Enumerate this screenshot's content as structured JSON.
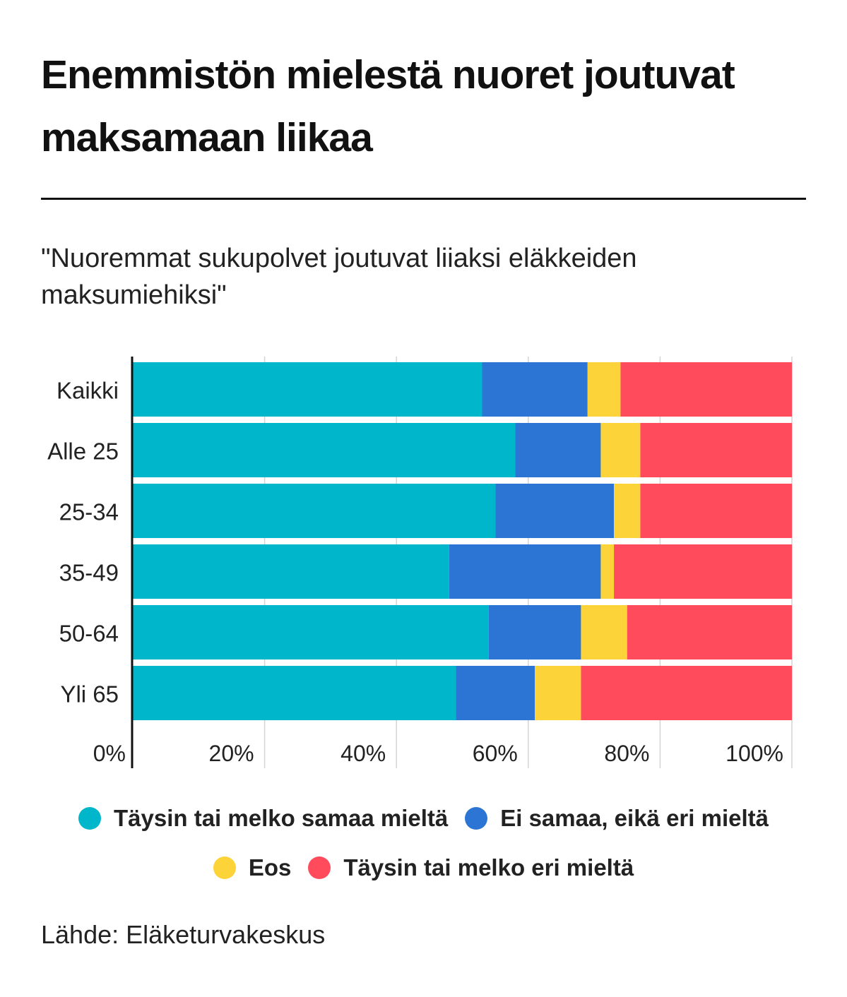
{
  "title": "Enemmistön mielestä nuoret joutuvat maksamaan liikaa",
  "subtitle": "\"Nuoremmat sukupolvet joutuvat liiaksi eläkkeiden maksumiehiksi\"",
  "source": "Lähde: Eläketurvakeskus",
  "chart_data": {
    "type": "bar",
    "orientation": "horizontal",
    "stacked": true,
    "categories": [
      "Kaikki",
      "Alle 25",
      "25-34",
      "35-49",
      "50-64",
      "Yli 65"
    ],
    "series": [
      {
        "name": "Täysin tai melko samaa mieltä",
        "color": "#00b6cb",
        "values": [
          53,
          58,
          55,
          48,
          54,
          49
        ]
      },
      {
        "name": "Ei samaa, eikä eri mieltä",
        "color": "#2d75d4",
        "values": [
          16,
          13,
          18,
          23,
          14,
          12
        ]
      },
      {
        "name": "Eos",
        "color": "#fdd33a",
        "values": [
          5,
          6,
          4,
          2,
          7,
          7
        ]
      },
      {
        "name": "Täysin tai melko eri mieltä",
        "color": "#ff4b5c",
        "values": [
          26,
          23,
          23,
          27,
          25,
          32
        ]
      }
    ],
    "xlim": [
      0,
      100
    ],
    "xticks": [
      0,
      20,
      40,
      60,
      80,
      100
    ],
    "xtick_labels": [
      "0%",
      "20%",
      "40%",
      "60%",
      "80%",
      "100%"
    ],
    "grid": true,
    "legend_position": "bottom"
  }
}
